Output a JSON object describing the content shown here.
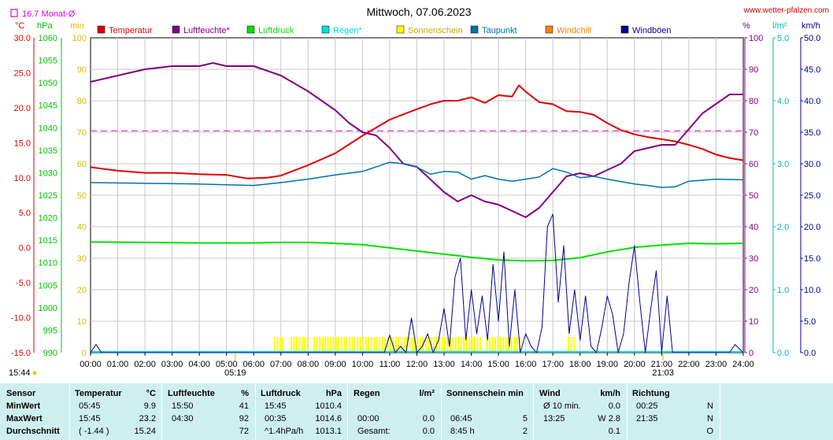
{
  "header": {
    "title": "Mittwoch, 07.06.2023",
    "site": "www.wetter-pfalzen.com",
    "month_avg": "16.7 Monat-Ø",
    "left_units": [
      "°C",
      "hPa",
      "min"
    ],
    "right_units": [
      "%",
      "l/m²",
      "km/h"
    ],
    "sunrise": "05:19",
    "sunset": "21:03",
    "time_now": "15:44"
  },
  "colors": {
    "temperature": "#e00000",
    "humidity": "#800080",
    "pressure": "#00e000",
    "rain": "#00dddd",
    "sunshine": "#ffff00",
    "dewpoint": "#0070b0",
    "windchill": "#ff8000",
    "gust": "#000090",
    "avg_line": "#e000e0"
  },
  "chart_data": {
    "type": "line",
    "title": "Mittwoch, 07.06.2023",
    "x_labels": [
      "00:00",
      "01:00",
      "02:00",
      "03:00",
      "04:00",
      "05:00",
      "06:00",
      "07:00",
      "08:00",
      "09:00",
      "10:00",
      "11:00",
      "12:00",
      "13:00",
      "14:00",
      "15:00",
      "16:00",
      "17:00",
      "18:00",
      "19:00",
      "20:00",
      "21:00",
      "22:00",
      "23:00",
      "24:00"
    ],
    "axes": {
      "temperature": {
        "unit": "°C",
        "range": [
          -15,
          30
        ],
        "ticks": [
          "30.0",
          "25.0",
          "20.0",
          "15.0",
          "10.0",
          "5.0",
          "0.0",
          "-5.0",
          "-10.0",
          "-15.0"
        ]
      },
      "pressure": {
        "unit": "hPa",
        "range": [
          990,
          1060
        ],
        "ticks": [
          "1060",
          "1055",
          "1050",
          "1045",
          "1040",
          "1035",
          "1030",
          "1025",
          "1020",
          "1015",
          "1010",
          "1005",
          "1000",
          "995",
          "990"
        ]
      },
      "sunshine": {
        "unit": "min",
        "range": [
          0,
          100
        ],
        "ticks": [
          "100",
          "90",
          "80",
          "70",
          "60",
          "50",
          "40",
          "30",
          "20",
          "10",
          "0"
        ]
      },
      "humidity": {
        "unit": "%",
        "range": [
          0,
          100
        ],
        "ticks": [
          "100",
          "90",
          "80",
          "70",
          "60",
          "50",
          "40",
          "30",
          "20",
          "10",
          "0"
        ]
      },
      "rain": {
        "unit": "l/m²",
        "range": [
          0,
          5
        ],
        "ticks": [
          "5.0",
          "4.0",
          "3.0",
          "2.0",
          "1.0",
          "0.0"
        ]
      },
      "wind": {
        "unit": "km/h",
        "range": [
          0,
          50
        ],
        "ticks": [
          "50.0",
          "45.0",
          "40.0",
          "35.0",
          "30.0",
          "25.0",
          "20.0",
          "15.0",
          "10.0",
          "5.0",
          "0.0"
        ]
      }
    },
    "legend": [
      "Temperatur",
      "Luftfeuchte*",
      "Luftdruck",
      "Regen*",
      "Sonnenschein",
      "Taupunkt",
      "Windchill",
      "Windböen"
    ],
    "reference_line": {
      "label": "16.7 Monat-Ø",
      "value": 16.7
    },
    "series": [
      {
        "name": "Temperatur",
        "axis": "temperature",
        "x": [
          0,
          1,
          2,
          3,
          4,
          5,
          5.75,
          6.5,
          7,
          8,
          9,
          10,
          11,
          12,
          12.5,
          13,
          13.5,
          14,
          14.5,
          15,
          15.5,
          15.75,
          16,
          16.5,
          17,
          17.5,
          18,
          18.5,
          19,
          19.5,
          20,
          20.5,
          21,
          21.5,
          22,
          22.5,
          23,
          23.5,
          24
        ],
        "y": [
          11.5,
          11,
          10.7,
          10.7,
          10.5,
          10.4,
          9.9,
          10,
          10.3,
          11.8,
          13.5,
          16,
          18.3,
          19.8,
          20.5,
          21,
          21,
          21.5,
          20.7,
          21.8,
          21.6,
          23.2,
          22.3,
          20.8,
          20.5,
          19.5,
          19.4,
          19,
          17.8,
          16.8,
          16.2,
          15.8,
          15.5,
          15.2,
          14.7,
          14.1,
          13.3,
          12.8,
          12.5
        ]
      },
      {
        "name": "Luftfeuchte*",
        "axis": "humidity",
        "x": [
          0,
          1,
          2,
          3,
          4,
          4.5,
          5,
          6,
          7,
          8,
          8.5,
          9,
          9.5,
          10,
          10.5,
          11,
          11.5,
          12,
          12.5,
          13,
          13.5,
          14,
          14.5,
          15,
          15.5,
          16,
          16.5,
          17,
          17.5,
          18,
          18.5,
          19,
          19.5,
          20,
          20.5,
          21,
          21.5,
          22,
          22.5,
          23,
          23.5,
          24
        ],
        "y": [
          86,
          88,
          90,
          91,
          91,
          92,
          91,
          91,
          88,
          83,
          80,
          77,
          73,
          70,
          69,
          65,
          60,
          59,
          55,
          51,
          48,
          50,
          48,
          47,
          45,
          43,
          46,
          51,
          56,
          57,
          56,
          58,
          60,
          64,
          65,
          66,
          66,
          71,
          76,
          79,
          82,
          82
        ]
      },
      {
        "name": "Luftdruck",
        "axis": "pressure",
        "x": [
          0,
          2,
          4,
          6,
          7,
          8,
          9,
          10,
          11,
          12,
          13,
          14,
          15,
          16,
          17,
          18,
          19,
          20,
          21,
          22,
          23,
          24
        ],
        "y": [
          1014.6,
          1014.5,
          1014.4,
          1014.4,
          1014.5,
          1014.5,
          1014.3,
          1014,
          1013.3,
          1012.6,
          1011.9,
          1011.2,
          1010.6,
          1010.4,
          1010.5,
          1011.1,
          1012.4,
          1013.4,
          1013.9,
          1014.3,
          1014.2,
          1014.3
        ]
      },
      {
        "name": "Taupunkt",
        "axis": "temperature",
        "x": [
          0,
          2,
          4,
          5,
          6,
          7,
          8,
          9,
          10,
          11,
          11.5,
          12,
          12.5,
          13,
          13.5,
          14,
          14.5,
          15,
          15.5,
          16,
          16.5,
          17,
          17.5,
          18,
          18.5,
          19,
          20,
          20.5,
          21,
          21.5,
          22,
          23,
          24
        ],
        "y": [
          9.3,
          9.2,
          9.1,
          9.0,
          8.9,
          9.3,
          9.8,
          10.4,
          10.9,
          12.2,
          12.0,
          11.5,
          10.5,
          10.9,
          10.8,
          9.8,
          10.3,
          9.8,
          9.5,
          9.8,
          10.1,
          11.3,
          10.8,
          10.0,
          10.2,
          9.8,
          9.1,
          8.9,
          8.6,
          8.7,
          9.5,
          9.8,
          9.7
        ]
      },
      {
        "name": "Windböen",
        "axis": "wind",
        "x": [
          0,
          0.2,
          0.4,
          10.8,
          11,
          11.2,
          11.4,
          11.6,
          11.8,
          12,
          12.2,
          12.4,
          12.6,
          12.8,
          13,
          13.2,
          13.4,
          13.6,
          13.8,
          14,
          14.2,
          14.4,
          14.6,
          14.8,
          15,
          15.2,
          15.4,
          15.6,
          15.8,
          16,
          16.2,
          16.4,
          16.6,
          16.8,
          17,
          17.2,
          17.4,
          17.6,
          17.8,
          18,
          18.2,
          18.4,
          18.6,
          18.8,
          19,
          19.2,
          19.4,
          19.6,
          19.8,
          20,
          20.2,
          20.4,
          20.6,
          20.8,
          21,
          21.2,
          21.4,
          23.5,
          23.7,
          24
        ],
        "y": [
          0,
          1.3,
          0,
          0,
          2.8,
          0,
          1,
          0,
          5.5,
          0,
          1,
          3,
          0,
          2,
          7,
          1,
          12,
          15,
          2,
          10,
          3,
          9,
          2,
          14,
          5,
          16,
          1,
          10,
          0,
          3,
          1,
          0,
          4,
          20,
          22,
          8,
          17,
          3,
          10,
          2,
          9,
          1,
          0,
          4,
          9,
          6,
          0,
          3,
          11,
          17,
          8,
          0,
          7,
          13,
          0,
          9,
          0,
          0,
          1.3,
          0
        ]
      }
    ],
    "sunshine_spans": [
      [
        6.75,
        7.1
      ],
      [
        7.35,
        7.95
      ],
      [
        8.2,
        14.35
      ],
      [
        14.55,
        15.8
      ],
      [
        17.55,
        17.8
      ]
    ],
    "markers": {
      "sunrise": 5.32,
      "sunset": 21.05
    }
  },
  "stats": {
    "sensor": {
      "label": "Sensor",
      "rows": [
        "MinWert",
        "MaxWert",
        "Durchschnitt"
      ]
    },
    "temperature": {
      "label": "Temperatur",
      "unit": "°C",
      "rows": [
        [
          "05:45",
          "9.9"
        ],
        [
          "15:45",
          "23.2"
        ],
        [
          "( -1.44 )",
          "15.24"
        ]
      ]
    },
    "humidity": {
      "label": "Luftfeuchte",
      "unit": "%",
      "rows": [
        [
          "15:50",
          "41"
        ],
        [
          "04:30",
          "92"
        ],
        [
          "",
          "72"
        ]
      ]
    },
    "pressure": {
      "label": "Luftdruck",
      "unit": "hPa",
      "rows": [
        [
          "15:45",
          "1010.4"
        ],
        [
          "00:35",
          "1014.6"
        ],
        [
          "^1.4hPa/h",
          "1013.1"
        ]
      ]
    },
    "rain": {
      "label": "Regen",
      "unit": "l/m²",
      "rows": [
        [
          "",
          ""
        ],
        [
          "00:00",
          "0.0"
        ],
        [
          "Gesamt:",
          "0.0"
        ]
      ]
    },
    "sunshine": {
      "label": "Sonnenschein min",
      "rows": [
        [
          "",
          ""
        ],
        [
          "06:45",
          "5"
        ],
        [
          "8:45 h",
          "2"
        ]
      ]
    },
    "wind": {
      "label": "Wind",
      "unit": "km/h",
      "rows": [
        [
          "Ø 10 min.",
          "0.0"
        ],
        [
          "13:25",
          "W 2.8"
        ],
        [
          "",
          "0.1"
        ]
      ]
    },
    "direction": {
      "label": "Richtung",
      "rows": [
        [
          "00:25",
          "N"
        ],
        [
          "21:35",
          "N"
        ],
        [
          "",
          "O"
        ]
      ]
    }
  }
}
